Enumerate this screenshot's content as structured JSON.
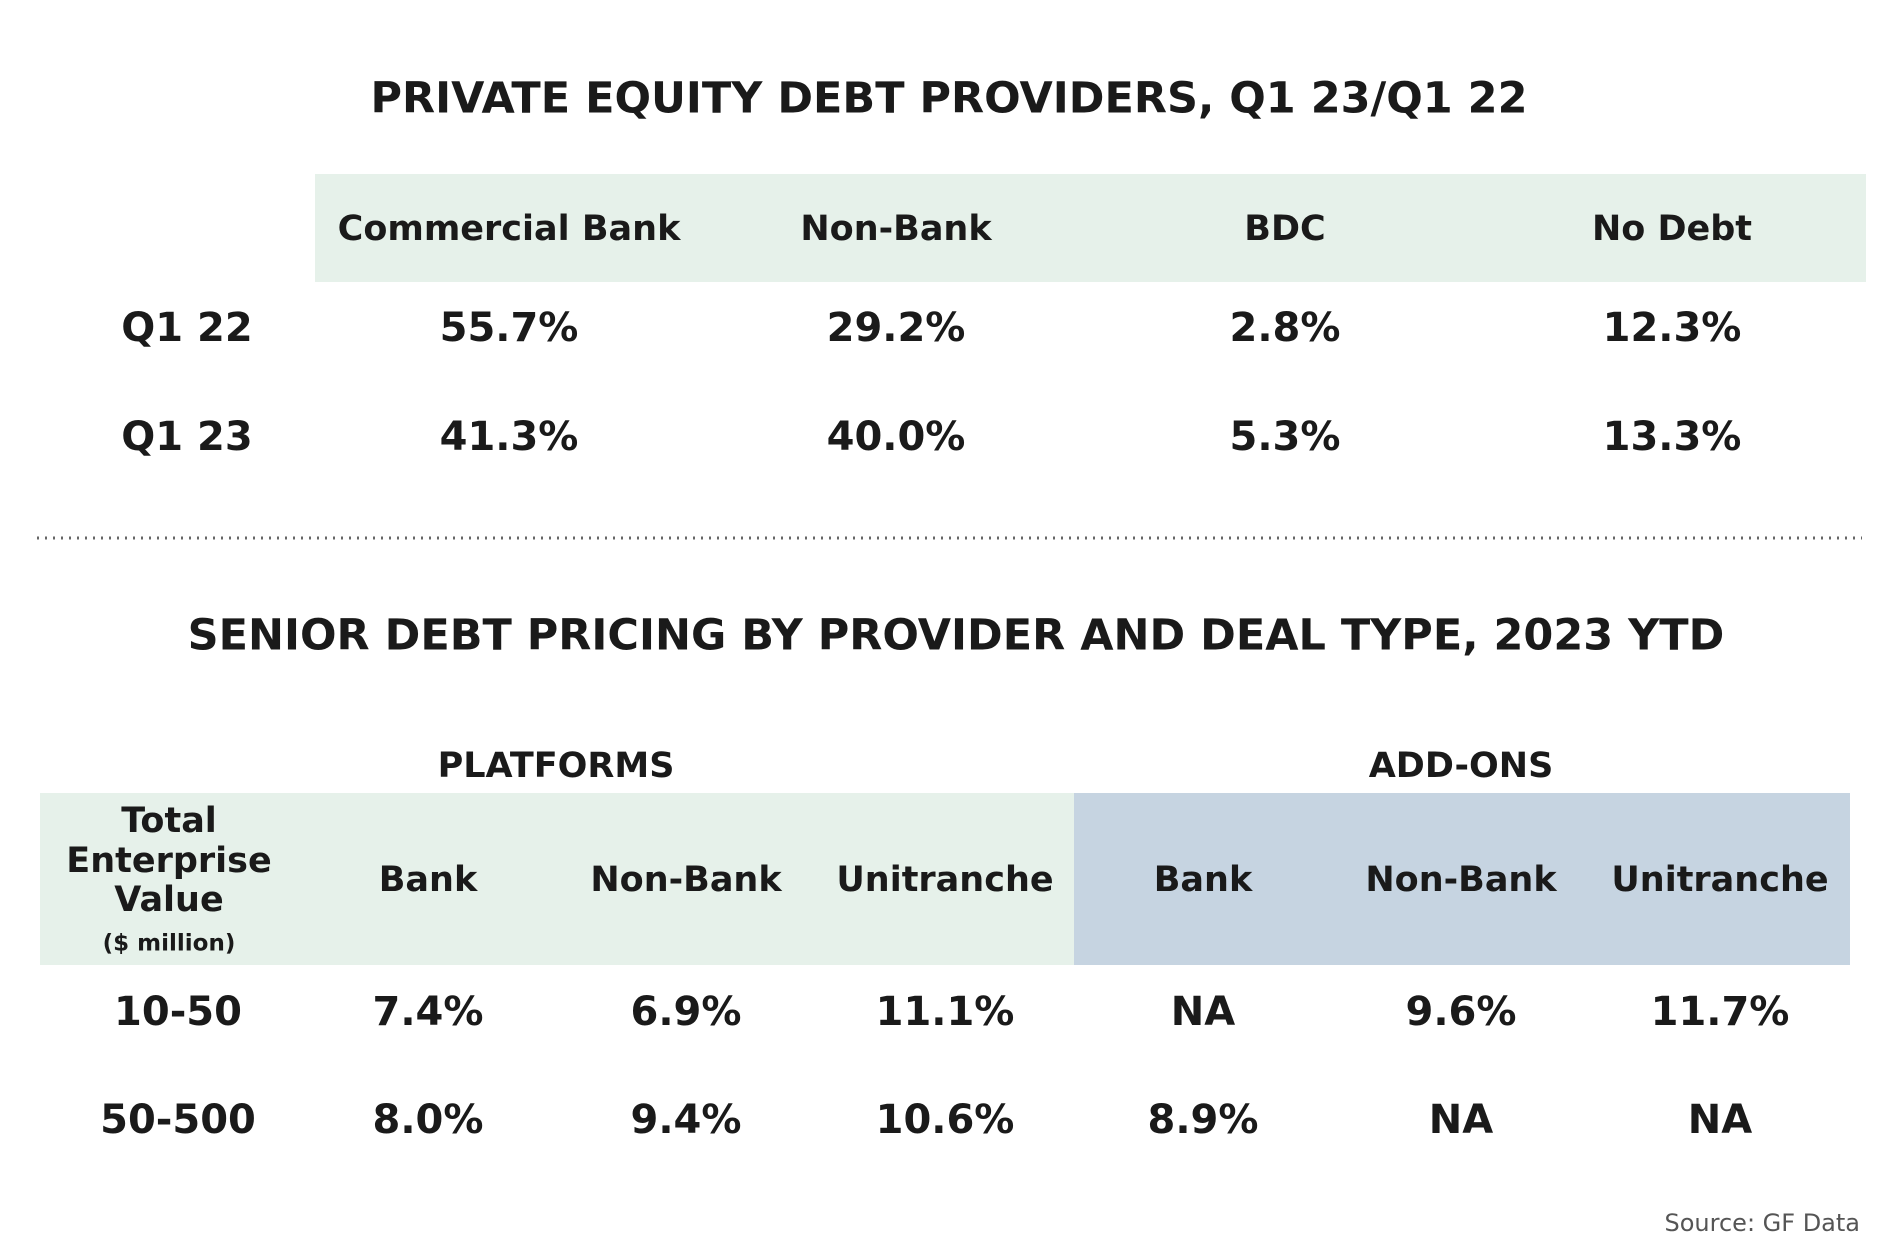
{
  "table1": {
    "title": "PRIVATE EQUITY DEBT PROVIDERS, Q1 23/Q1 22",
    "columns": [
      "Commercial Bank",
      "Non-Bank",
      "BDC",
      "No Debt"
    ],
    "rows": [
      {
        "label": "Q1 22",
        "cells": [
          "55.7%",
          "29.2%",
          "2.8%",
          "12.3%"
        ]
      },
      {
        "label": "Q1 23",
        "cells": [
          "41.3%",
          "40.0%",
          "5.3%",
          "13.3%"
        ]
      }
    ]
  },
  "table2": {
    "title": "SENIOR DEBT PRICING BY PROVIDER AND DEAL TYPE, 2023 YTD",
    "groups": [
      "PLATFORMS",
      "ADD-ONS"
    ],
    "row_header": {
      "lines": [
        "Total",
        "Enterprise",
        "Value"
      ],
      "unit": "($ million)"
    },
    "columns": [
      "Bank",
      "Non-Bank",
      "Unitranche",
      "Bank",
      "Non-Bank",
      "Unitranche"
    ],
    "rows": [
      {
        "label": "10-50",
        "cells": [
          "7.4%",
          "6.9%",
          "11.1%",
          "NA",
          "9.6%",
          "11.7%"
        ]
      },
      {
        "label": "50-500",
        "cells": [
          "8.0%",
          "9.4%",
          "10.6%",
          "8.9%",
          "NA",
          "NA"
        ]
      }
    ]
  },
  "source": "Source: GF Data"
}
